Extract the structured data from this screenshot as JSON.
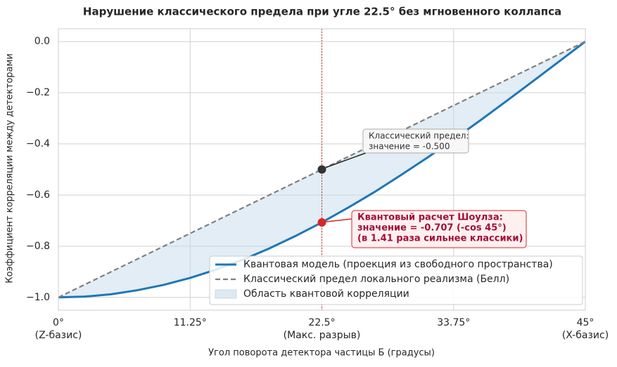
{
  "chart_data": {
    "type": "line",
    "title": "Нарушение классического предела при угле 22.5° без мгновенного коллапса",
    "xlabel": "Угол поворота детектора частицы Б (градусы)",
    "ylabel": "Коэффициент корреляции между детекторами",
    "x": [
      0,
      2.25,
      4.5,
      6.75,
      9,
      11.25,
      13.5,
      15.75,
      18,
      20.25,
      22.5,
      24.75,
      27,
      29.25,
      31.5,
      33.75,
      36,
      38.25,
      40.5,
      42.75,
      45
    ],
    "series": [
      {
        "name": "Квантовая модель (проекция из свободного пространства)",
        "color": "#1f77b4",
        "style": "solid",
        "values": [
          -1,
          -0.997,
          -0.988,
          -0.972,
          -0.951,
          -0.924,
          -0.891,
          -0.853,
          -0.809,
          -0.76,
          -0.707,
          -0.649,
          -0.588,
          -0.522,
          -0.454,
          -0.383,
          -0.309,
          -0.233,
          -0.156,
          -0.078,
          0
        ]
      },
      {
        "name": "Классический предел локального реализма (Белл)",
        "color": "#7f7f7f",
        "style": "dashed",
        "values": [
          -1,
          -0.95,
          -0.9,
          -0.85,
          -0.8,
          -0.75,
          -0.7,
          -0.65,
          -0.6,
          -0.55,
          -0.5,
          -0.45,
          -0.4,
          -0.35,
          -0.3,
          -0.25,
          -0.2,
          -0.15,
          -0.1,
          -0.05,
          0
        ]
      }
    ],
    "fill": {
      "name": "Область квантовой корреляции",
      "color": "#c6dcec"
    },
    "xlim": [
      0,
      45
    ],
    "ylim": [
      -1.05,
      0.05
    ],
    "xticks": [
      {
        "value": 0,
        "label": "0°",
        "sublabel": "(Z-базис)"
      },
      {
        "value": 11.25,
        "label": "11.25°"
      },
      {
        "value": 22.5,
        "label": "22.5°",
        "sublabel": "(Макс. разрыв)"
      },
      {
        "value": 33.75,
        "label": "33.75°"
      },
      {
        "value": 45,
        "label": "45°",
        "sublabel": "(X-базис)"
      }
    ],
    "yticks": [
      {
        "value": 0,
        "label": "0.0"
      },
      {
        "value": -0.2,
        "label": "−0.2"
      },
      {
        "value": -0.4,
        "label": "−0.4"
      },
      {
        "value": -0.6,
        "label": "−0.6"
      },
      {
        "value": -0.8,
        "label": "−0.8"
      },
      {
        "value": -1,
        "label": "−1.0"
      }
    ],
    "vline": {
      "x": 22.5,
      "color": "#c0392b"
    },
    "annotations": [
      {
        "text": [
          "Классический предел:",
          "значение = -0.500"
        ],
        "x": 22.5,
        "y": -0.5,
        "color": "#333333"
      },
      {
        "text": [
          "Квантовый расчет Шоулза:",
          "значение = -0.707 (-cos 45°)",
          "(в 1.41 раза сильнее классики)"
        ],
        "x": 22.5,
        "y": -0.707,
        "color": "#d62728"
      }
    ],
    "grid": true,
    "legend": "lower right"
  }
}
